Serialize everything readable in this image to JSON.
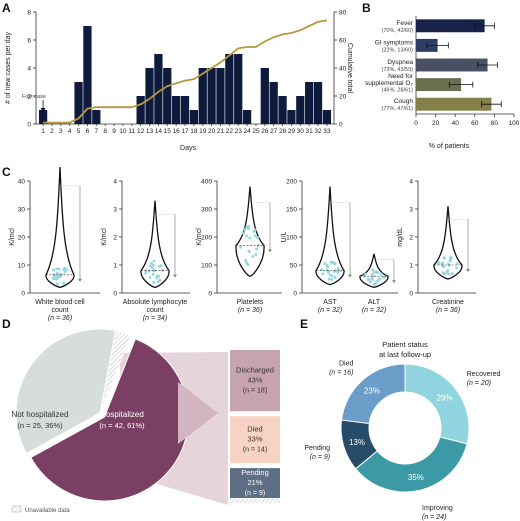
{
  "panel_labels": [
    "A",
    "B",
    "C",
    "D",
    "E"
  ],
  "chart_data": [
    {
      "panel": "A",
      "type": "bar",
      "xlabel": "Days",
      "ylabel": "# of new cases per day",
      "y2label": "Cumulative total",
      "ylim": [
        0,
        8
      ],
      "y2lim": [
        0,
        80
      ],
      "yticks": [
        "0",
        "2",
        "4",
        "6",
        "8"
      ],
      "y2ticks": [
        "0",
        "20",
        "40",
        "60",
        "80"
      ],
      "annotation": "First case",
      "categories": [
        "1",
        "2",
        "3",
        "4",
        "5",
        "6",
        "7",
        "8",
        "9",
        "10",
        "11",
        "12",
        "13",
        "14",
        "15",
        "16",
        "17",
        "18",
        "19",
        "20",
        "21",
        "22",
        "23",
        "24",
        "25",
        "26",
        "27",
        "28",
        "29",
        "30",
        "31",
        "32",
        "33"
      ],
      "series": [
        {
          "values": [
            1,
            0,
            0,
            0,
            3,
            7,
            1,
            0,
            0,
            0,
            0,
            2,
            4,
            5,
            4,
            2,
            2,
            1,
            4,
            4,
            4,
            5,
            5,
            1,
            0,
            4,
            3,
            2,
            1,
            2,
            3,
            3,
            1
          ]
        },
        {
          "values": [
            1,
            1,
            1,
            1,
            4,
            11,
            12,
            12,
            12,
            12,
            12,
            14,
            18,
            23,
            27,
            29,
            31,
            32,
            36,
            40,
            44,
            49,
            54,
            55,
            55,
            59,
            62,
            64,
            65,
            67,
            70,
            73,
            74
          ]
        }
      ]
    },
    {
      "panel": "B",
      "type": "bar",
      "orientation": "horizontal",
      "xlabel": "% of patients",
      "xlim": [
        0,
        100
      ],
      "xticks": [
        "0",
        "20",
        "40",
        "60",
        "80",
        "100"
      ],
      "categories": [
        {
          "name": "Fever",
          "detail": "(70%, 42/60)",
          "value": 70,
          "err": 10,
          "color": "#17234a"
        },
        {
          "name": "GI symptoms",
          "detail": "(22%, 13/60)",
          "value": 22,
          "err": 11,
          "color": "#2e3d66"
        },
        {
          "name": "Dyspnea",
          "detail": "(73%, 43/59)",
          "value": 73,
          "err": 10,
          "color": "#4a4f63"
        },
        {
          "name": "Need for supplemental O₂",
          "detail": "(46%, 28/61)",
          "value": 46,
          "err": 12,
          "color": "#6b6e4d"
        },
        {
          "name": "Cough",
          "detail": "(77%, 47/61)",
          "value": 77,
          "err": 10,
          "color": "#857f4a"
        }
      ]
    },
    {
      "panel": "C",
      "type": "violin",
      "groups": [
        {
          "label": "White blood cell count",
          "n": "(n = 36)",
          "ylabel": "K/mcl",
          "yticks": [
            "0",
            "10",
            "20",
            "30",
            "40"
          ],
          "median": 6.5,
          "min": 2,
          "max": 45
        },
        {
          "label": "Absolute lymphocyte count",
          "n": "(n = 34)",
          "ylabel": "K/mcl",
          "yticks": [
            "0",
            "1",
            "2",
            "3",
            "4"
          ],
          "median": 0.8,
          "min": 0.2,
          "max": 3.3
        },
        {
          "label": "Platelets",
          "n": "(n = 36)",
          "ylabel": "K/mcl",
          "yticks": [
            "0",
            "100",
            "200",
            "300",
            "400"
          ],
          "median": 170,
          "min": 60,
          "max": 380
        },
        {
          "label": "AST",
          "n": "(n = 32)",
          "ylabel": "U/L",
          "yticks": [
            "0",
            "50",
            "100",
            "150",
            "200"
          ],
          "median": 40,
          "min": 15,
          "max": 190
        },
        {
          "label": "ALT",
          "n": "(n = 32)",
          "ylabel": "U/L",
          "yticks": [
            "0",
            "50",
            "100",
            "150",
            "200"
          ],
          "median": 30,
          "min": 10,
          "max": 70
        },
        {
          "label": "Creatinine",
          "n": "(n = 36)",
          "ylabel": "mg/dL",
          "yticks": [
            "0",
            "1",
            "2",
            "3",
            "4"
          ],
          "median": 1.0,
          "min": 0.5,
          "max": 3.1
        }
      ]
    },
    {
      "panel": "D",
      "type": "pie",
      "slices": [
        {
          "label": "Hospitalized",
          "sub": "(n = 42, 61%)",
          "value": 61,
          "color": "#7b3f63"
        },
        {
          "label": "Not hospitalized",
          "sub": "(n = 25, 36%)",
          "value": 36,
          "color": "#d7dddd"
        },
        {
          "label": "",
          "sub": "",
          "value": 3,
          "color": "#eeeeee"
        }
      ],
      "legend": "Unavailable data",
      "breakdown": [
        {
          "label": "Discharged",
          "pct": "43%",
          "n": "(n = 18)",
          "value": 43,
          "color": "#c6a3b1"
        },
        {
          "label": "Died",
          "pct": "33%",
          "n": "(n = 14)",
          "value": 33,
          "color": "#f6d3c4"
        },
        {
          "label": "Pending",
          "pct": "21%",
          "n": "(n = 9)",
          "value": 21,
          "color": "#5e6e86"
        }
      ]
    },
    {
      "panel": "E",
      "type": "pie",
      "title": "Patient status\nat last follow-up",
      "slices": [
        {
          "label": "Recovered",
          "n": "(n = 20)",
          "pct": "29%",
          "value": 29,
          "color": "#8fd4de"
        },
        {
          "label": "Improving",
          "n": "(n = 24)",
          "pct": "35%",
          "value": 35,
          "color": "#3c9aa6"
        },
        {
          "label": "Pending",
          "n": "(n = 9)",
          "pct": "13%",
          "value": 13,
          "color": "#264c6a"
        },
        {
          "label": "Died",
          "n": "(n = 16)",
          "pct": "23%",
          "value": 23,
          "color": "#6a9dc8"
        }
      ]
    }
  ],
  "colors": {
    "bar": "#0f1b3d",
    "line": "#b89a3c",
    "dots": "#8fd4de",
    "violin": "#111111",
    "grey": "#888888"
  }
}
